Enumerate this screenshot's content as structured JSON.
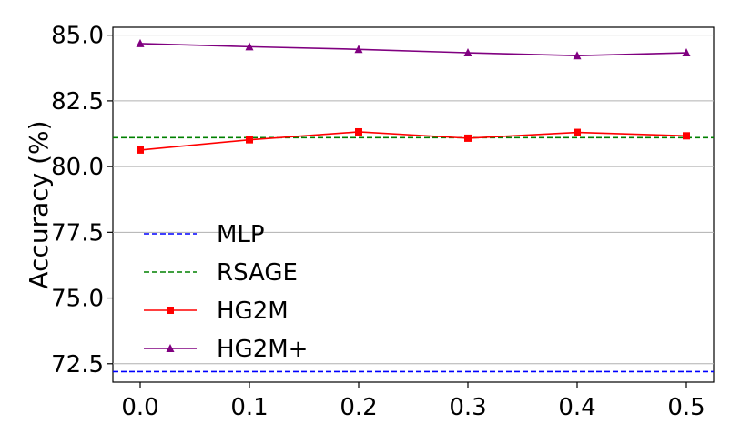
{
  "chart_data": {
    "type": "line",
    "title": "",
    "xlabel": "",
    "ylabel": "Accuracy (%)",
    "x": [
      0.0,
      0.1,
      0.2,
      0.3,
      0.4,
      0.5
    ],
    "x_tick_labels": [
      "0.0",
      "0.1",
      "0.2",
      "0.3",
      "0.4",
      "0.5"
    ],
    "xlim": [
      -0.025,
      0.525
    ],
    "ylim": [
      71.8,
      85.3
    ],
    "y_ticks": [
      72.5,
      75.0,
      77.5,
      80.0,
      82.5,
      85.0
    ],
    "y_tick_labels": [
      "72.5",
      "75.0",
      "77.5",
      "80.0",
      "82.5",
      "85.0"
    ],
    "grid": "horizontal",
    "legend_position": "lower-left",
    "series": [
      {
        "name": "MLP",
        "kind": "baseline",
        "value": 72.2,
        "color": "#0000ff",
        "dash": true,
        "marker": "none"
      },
      {
        "name": "RSAGE",
        "kind": "baseline",
        "value": 81.1,
        "color": "#008000",
        "dash": true,
        "marker": "none"
      },
      {
        "name": "HG2M",
        "kind": "line",
        "values": [
          80.63,
          81.02,
          81.32,
          81.08,
          81.3,
          81.17
        ],
        "color": "#ff0000",
        "dash": false,
        "marker": "square"
      },
      {
        "name": "HG2M+",
        "kind": "line",
        "values": [
          84.68,
          84.56,
          84.46,
          84.33,
          84.22,
          84.33
        ],
        "color": "#800080",
        "dash": false,
        "marker": "triangle"
      }
    ]
  }
}
